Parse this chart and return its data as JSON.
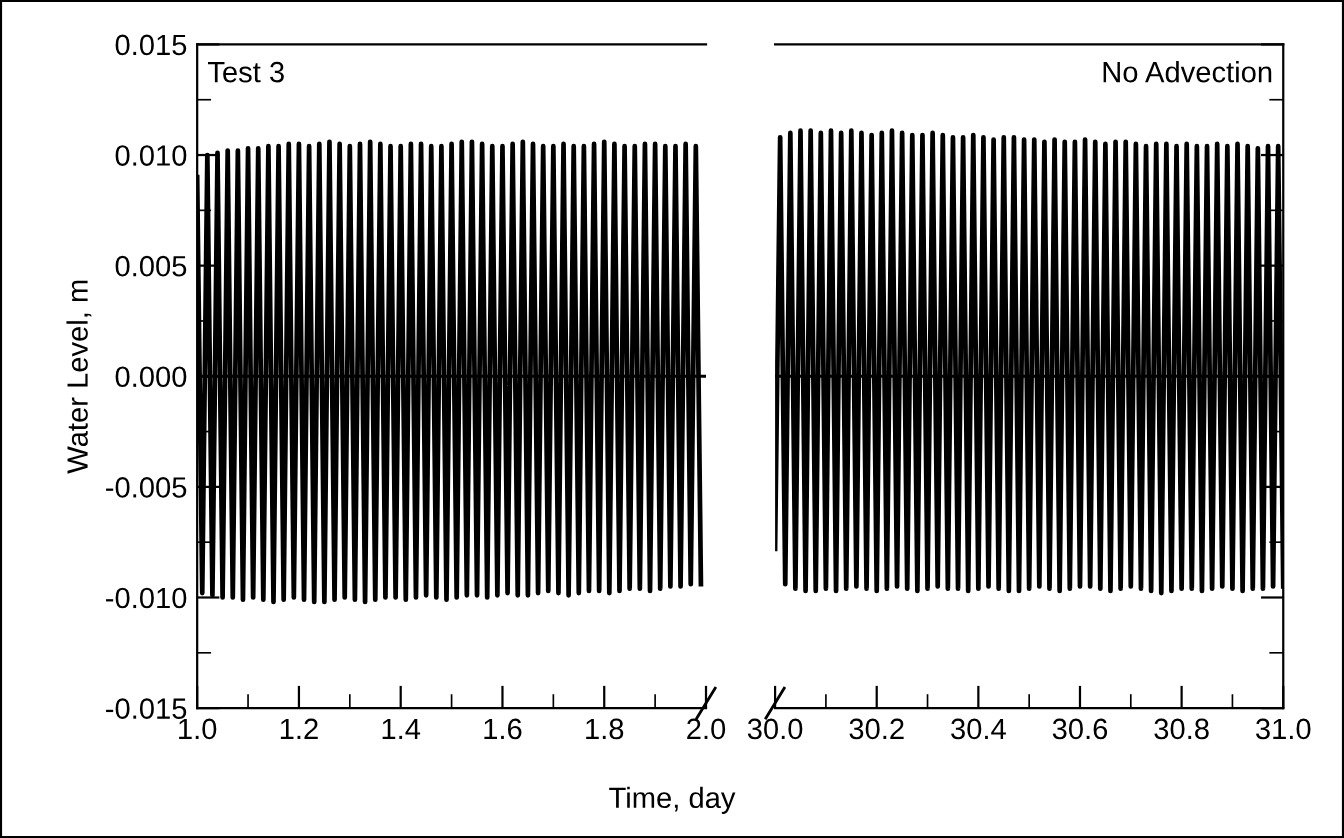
{
  "chart_data": [
    {
      "type": "line",
      "ylabel": "Water Level, m",
      "xlabel": "Time, day",
      "annotations": [
        "Test 3"
      ],
      "xlim": [
        1.0,
        2.0
      ],
      "ylim": [
        -0.015,
        0.015
      ],
      "xticks": [
        {
          "value": 1.0,
          "label": "1.0"
        },
        {
          "value": 1.2,
          "label": "1.2"
        },
        {
          "value": 1.4,
          "label": "1.4"
        },
        {
          "value": 1.6,
          "label": "1.6"
        },
        {
          "value": 1.8,
          "label": "1.8"
        },
        {
          "value": 2.0,
          "label": "2.0"
        }
      ],
      "yticks": [
        {
          "value": -0.015,
          "label": "-0.015"
        },
        {
          "value": -0.01,
          "label": "-0.010"
        },
        {
          "value": -0.005,
          "label": "-0.005"
        },
        {
          "value": 0,
          "label": "0.000"
        },
        {
          "value": 0.005,
          "label": "0.005"
        },
        {
          "value": 0.01,
          "label": "0.010"
        },
        {
          "value": 0.015,
          "label": "0.015"
        }
      ],
      "ref_lines": [
        {
          "axis": "y",
          "value": 0,
          "color": "#000000"
        }
      ],
      "grid": false,
      "legend": false,
      "marker": "none",
      "line_style": "solid",
      "series": [
        {
          "color": "#000000",
          "x": [
            1.0,
            1.01,
            1.02,
            1.03,
            1.04,
            1.05,
            1.06,
            1.07,
            1.08,
            1.09,
            1.1,
            1.11,
            1.12,
            1.13,
            1.14,
            1.15,
            1.16,
            1.17,
            1.18,
            1.19,
            1.2,
            1.21,
            1.22,
            1.23,
            1.24,
            1.25,
            1.26,
            1.27,
            1.28,
            1.29,
            1.3,
            1.31,
            1.32,
            1.33,
            1.34,
            1.35,
            1.36,
            1.37,
            1.38,
            1.39,
            1.4,
            1.41,
            1.42,
            1.43,
            1.44,
            1.45,
            1.46,
            1.47,
            1.48,
            1.49,
            1.5,
            1.51,
            1.52,
            1.53,
            1.54,
            1.55,
            1.56,
            1.57,
            1.58,
            1.59,
            1.6,
            1.61,
            1.62,
            1.63,
            1.64,
            1.65,
            1.66,
            1.67,
            1.68,
            1.69,
            1.7,
            1.71,
            1.72,
            1.73,
            1.74,
            1.75,
            1.76,
            1.77,
            1.78,
            1.79,
            1.8,
            1.81,
            1.82,
            1.83,
            1.84,
            1.85,
            1.86,
            1.87,
            1.88,
            1.89,
            1.9,
            1.91,
            1.92,
            1.93,
            1.94,
            1.95,
            1.96,
            1.97,
            1.98,
            1.99
          ],
          "values": [
            0.009,
            -0.0098,
            0.01,
            -0.0099,
            0.0101,
            -0.01,
            0.0102,
            -0.01,
            0.0102,
            -0.0101,
            0.0103,
            -0.01,
            0.0103,
            -0.0101,
            0.0104,
            -0.0102,
            0.0104,
            -0.0101,
            0.0105,
            -0.01,
            0.0105,
            -0.0101,
            0.0104,
            -0.0102,
            0.0105,
            -0.0102,
            0.0106,
            -0.0101,
            0.0105,
            -0.01,
            0.0104,
            -0.0101,
            0.0105,
            -0.0102,
            0.0106,
            -0.0101,
            0.0105,
            -0.01,
            0.0104,
            -0.01,
            0.0104,
            -0.0101,
            0.0105,
            -0.01,
            0.0105,
            -0.0099,
            0.0104,
            -0.01,
            0.0104,
            -0.0101,
            0.0105,
            -0.01,
            0.0106,
            -0.0099,
            0.0106,
            -0.0099,
            0.0105,
            -0.01,
            0.0104,
            -0.0099,
            0.0104,
            -0.0098,
            0.0105,
            -0.0099,
            0.0106,
            -0.0099,
            0.0105,
            -0.0098,
            0.0104,
            -0.0097,
            0.0104,
            -0.0098,
            0.0105,
            -0.0099,
            0.0104,
            -0.0098,
            0.0104,
            -0.0097,
            0.0105,
            -0.0097,
            0.0106,
            -0.0098,
            0.0105,
            -0.0097,
            0.0104,
            -0.0096,
            0.0104,
            -0.0096,
            0.0105,
            -0.0097,
            0.0105,
            -0.0096,
            0.0104,
            -0.0095,
            0.0104,
            -0.0095,
            0.0105,
            -0.0094,
            0.0104,
            -0.0094
          ]
        }
      ]
    },
    {
      "type": "line",
      "annotations": [
        "No Advection"
      ],
      "tick_labels": "x",
      "xlim": [
        30.0,
        31.0
      ],
      "ylim": [
        -0.015,
        0.015
      ],
      "xticks": [
        {
          "value": 30.0,
          "label": "30.0"
        },
        {
          "value": 30.2,
          "label": "30.2"
        },
        {
          "value": 30.4,
          "label": "30.4"
        },
        {
          "value": 30.6,
          "label": "30.6"
        },
        {
          "value": 30.8,
          "label": "30.8"
        },
        {
          "value": 31.0,
          "label": "31.0"
        }
      ],
      "ref_lines": [
        {
          "axis": "y",
          "value": 0,
          "color": "#000000"
        }
      ],
      "grid": false,
      "legend": false,
      "marker": "none",
      "line_style": "solid",
      "series": [
        {
          "color": "#000000",
          "x": [
            30.0,
            30.01,
            30.02,
            30.03,
            30.04,
            30.05,
            30.06,
            30.07,
            30.08,
            30.09,
            30.1,
            30.11,
            30.12,
            30.13,
            30.14,
            30.15,
            30.16,
            30.17,
            30.18,
            30.19,
            30.2,
            30.21,
            30.22,
            30.23,
            30.24,
            30.25,
            30.26,
            30.27,
            30.28,
            30.29,
            30.3,
            30.31,
            30.32,
            30.33,
            30.34,
            30.35,
            30.36,
            30.37,
            30.38,
            30.39,
            30.4,
            30.41,
            30.42,
            30.43,
            30.44,
            30.45,
            30.46,
            30.47,
            30.48,
            30.49,
            30.5,
            30.51,
            30.52,
            30.53,
            30.54,
            30.55,
            30.56,
            30.57,
            30.58,
            30.59,
            30.6,
            30.61,
            30.62,
            30.63,
            30.64,
            30.65,
            30.66,
            30.67,
            30.68,
            30.69,
            30.7,
            30.71,
            30.72,
            30.73,
            30.74,
            30.75,
            30.76,
            30.77,
            30.78,
            30.79,
            30.8,
            30.81,
            30.82,
            30.83,
            30.84,
            30.85,
            30.86,
            30.87,
            30.88,
            30.89,
            30.9,
            30.91,
            30.92,
            30.93,
            30.94,
            30.95,
            30.96,
            30.97,
            30.98,
            30.99,
            31.0
          ],
          "values": [
            -0.0078,
            0.0108,
            -0.0094,
            0.011,
            -0.0096,
            0.0111,
            -0.0097,
            0.0111,
            -0.0097,
            0.011,
            -0.0096,
            0.0111,
            -0.0097,
            0.011,
            -0.0096,
            0.0111,
            -0.0095,
            0.011,
            -0.0096,
            0.0109,
            -0.0097,
            0.011,
            -0.0096,
            0.0111,
            -0.0095,
            0.011,
            -0.0096,
            0.0109,
            -0.0097,
            0.0109,
            -0.0096,
            0.011,
            -0.0095,
            0.0109,
            -0.0096,
            0.0108,
            -0.0096,
            0.0108,
            -0.0097,
            0.0109,
            -0.0096,
            0.0108,
            -0.0095,
            0.0107,
            -0.0096,
            0.0108,
            -0.0097,
            0.0108,
            -0.0097,
            0.0107,
            -0.0096,
            0.0107,
            -0.0095,
            0.0106,
            -0.0096,
            0.0107,
            -0.0097,
            0.0106,
            -0.0096,
            0.0106,
            -0.0095,
            0.0107,
            -0.0095,
            0.0106,
            -0.0096,
            0.0105,
            -0.0097,
            0.0106,
            -0.0096,
            0.0106,
            -0.0095,
            0.0105,
            -0.0096,
            0.0104,
            -0.0097,
            0.0105,
            -0.0098,
            0.0105,
            -0.0097,
            0.0104,
            -0.0096,
            0.0105,
            -0.0096,
            0.0104,
            -0.0097,
            0.0104,
            -0.0096,
            0.0105,
            -0.0095,
            0.0104,
            -0.0096,
            0.0105,
            -0.0097,
            0.0104,
            -0.0096,
            0.0103,
            -0.0096,
            0.0104,
            -0.0095,
            0.0104,
            -0.0095
          ]
        }
      ]
    }
  ]
}
